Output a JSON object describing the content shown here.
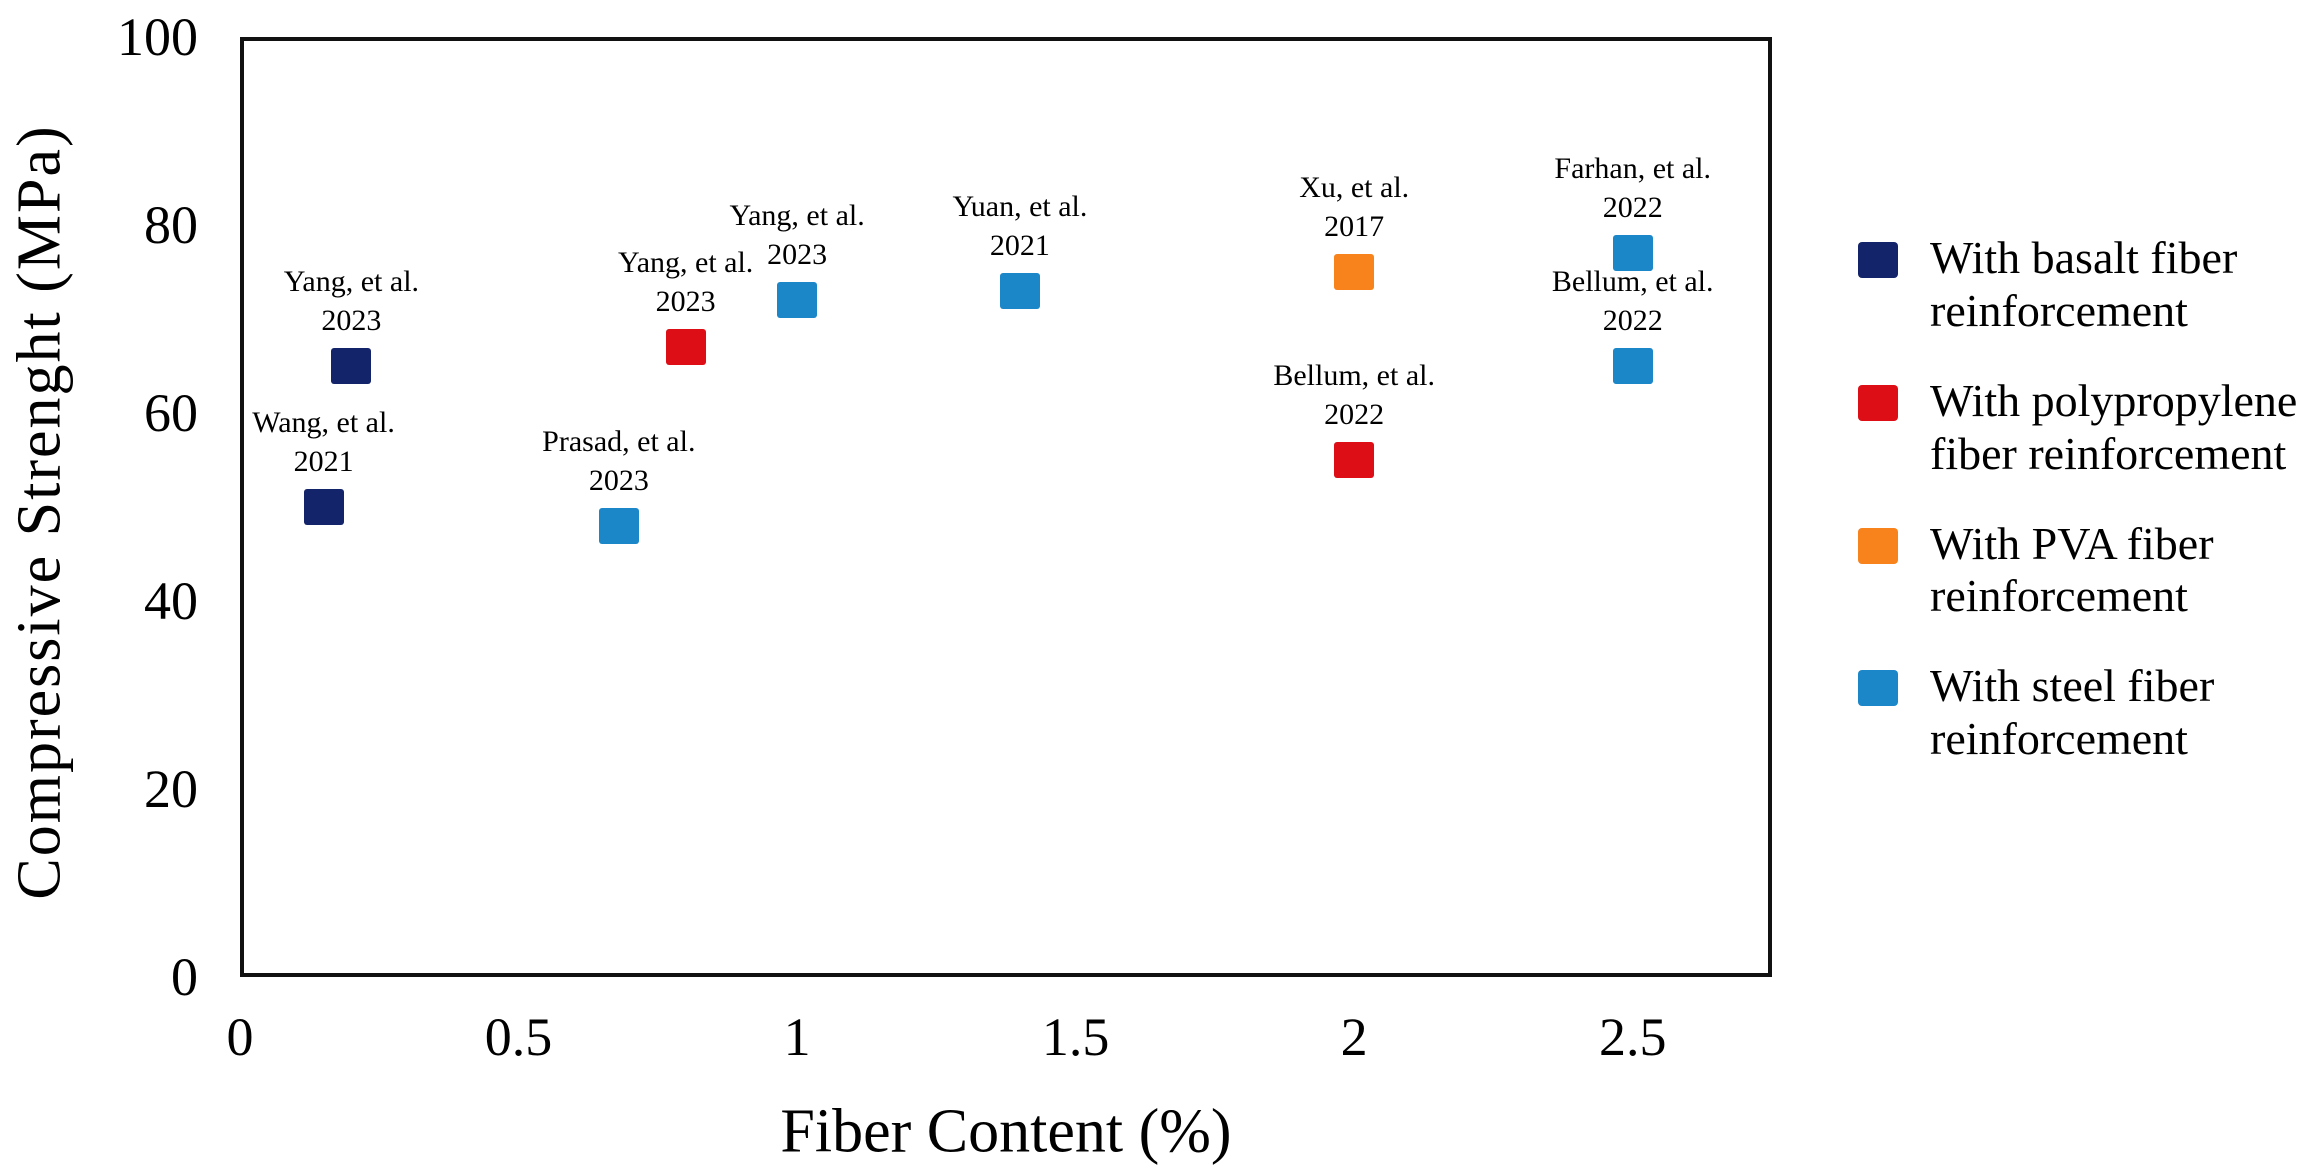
{
  "chart_data": {
    "type": "scatter",
    "title": "",
    "xlabel": "Fiber Content (%)",
    "ylabel": "Compressive Strenght (MPa)",
    "xlim": [
      0,
      2.75
    ],
    "ylim": [
      0,
      100
    ],
    "xticks": [
      0,
      0.5,
      1,
      1.5,
      2,
      2.5
    ],
    "yticks": [
      0,
      20,
      40,
      60,
      80,
      100
    ],
    "grid": false,
    "legend_position": "right",
    "marker_shape": "square",
    "series": [
      {
        "key": "basalt",
        "label": "With basalt fiber reinforcement",
        "color": "#14246b"
      },
      {
        "key": "polypropylene",
        "label": "With polypropylene fiber reinforcement",
        "color": "#dd0e15"
      },
      {
        "key": "pva",
        "label": "With PVA fiber reinforcement",
        "color": "#f8821b"
      },
      {
        "key": "steel",
        "label": "With steel fiber reinforcement",
        "color": "#1b86c8"
      }
    ],
    "points": [
      {
        "study": "Wang, et al.",
        "year": "2021",
        "series": "basalt",
        "x": 0.15,
        "y": 50
      },
      {
        "study": "Yang, et al.",
        "year": "2023",
        "series": "basalt",
        "x": 0.2,
        "y": 65
      },
      {
        "study": "Prasad, et al.",
        "year": "2023",
        "series": "steel",
        "x": 0.68,
        "y": 48
      },
      {
        "study": "Yang, et al.",
        "year": "2023",
        "series": "polypropylene",
        "x": 0.8,
        "y": 67
      },
      {
        "study": "Yang, et al.",
        "year": "2023",
        "series": "steel",
        "x": 1.0,
        "y": 72
      },
      {
        "study": "Yuan, et al.",
        "year": "2021",
        "series": "steel",
        "x": 1.4,
        "y": 73
      },
      {
        "study": "Xu, et al.",
        "year": "2017",
        "series": "pva",
        "x": 2.0,
        "y": 75
      },
      {
        "study": "Bellum, et al.",
        "year": "2022",
        "series": "polypropylene",
        "x": 2.0,
        "y": 55
      },
      {
        "study": "Farhan, et al.",
        "year": "2022",
        "series": "steel",
        "x": 2.5,
        "y": 77
      },
      {
        "study": "Bellum, et al.",
        "year": "2022",
        "series": "steel",
        "x": 2.5,
        "y": 65
      }
    ]
  }
}
